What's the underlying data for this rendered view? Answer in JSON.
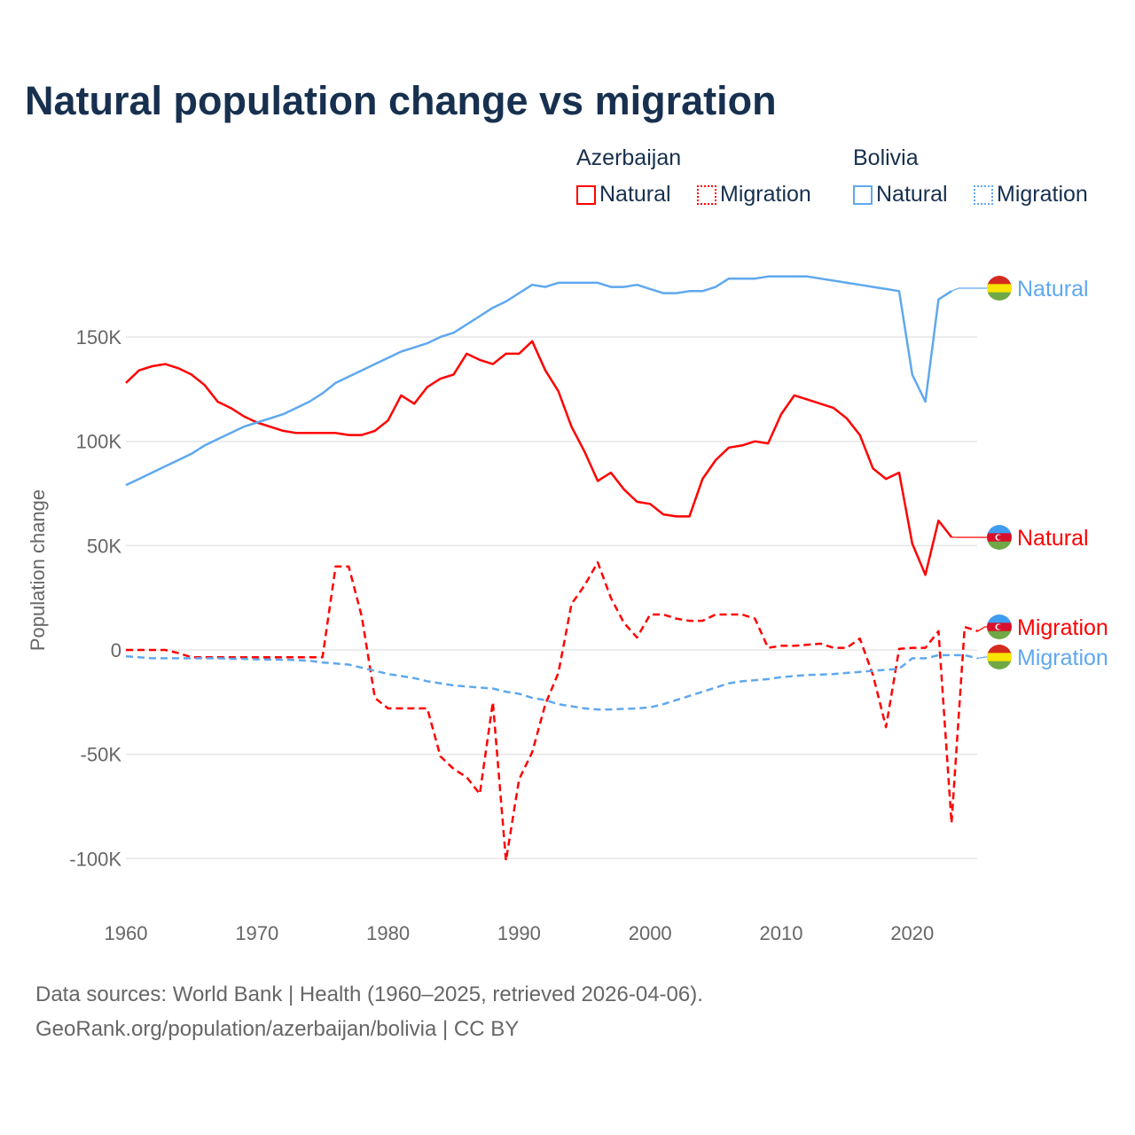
{
  "title": "Natural population change vs migration",
  "legend": {
    "groups": [
      {
        "name": "Azerbaijan",
        "items": [
          {
            "label": "Natural",
            "style": "solid"
          },
          {
            "label": "Migration",
            "style": "dotted"
          }
        ],
        "color": "#ff0000"
      },
      {
        "name": "Bolivia",
        "items": [
          {
            "label": "Natural",
            "style": "solid"
          },
          {
            "label": "Migration",
            "style": "dotted"
          }
        ],
        "color": "#5fa8ee"
      }
    ]
  },
  "footer": {
    "line1": "Data sources: World Bank | Health (1960–2025, retrieved 2026-04-06).",
    "line2": "GeoRank.org/population/azerbaijan/bolivia | CC BY"
  },
  "chart_data": {
    "type": "line",
    "title": "Natural population change vs migration",
    "xlabel": "",
    "ylabel": "Population change",
    "xlim": [
      1960,
      2025
    ],
    "ylim": [
      -110000,
      190000
    ],
    "xticks": [
      1960,
      1970,
      1980,
      1990,
      2000,
      2010,
      2020
    ],
    "xtick_labels": [
      "1960",
      "1970",
      "1980",
      "1990",
      "2000",
      "2010",
      "2020"
    ],
    "yticks": [
      -100000,
      -50000,
      0,
      50000,
      100000,
      150000
    ],
    "ytick_labels": [
      "-100K",
      "-50K",
      "0",
      "50K",
      "100K",
      "150K"
    ],
    "grid": true,
    "legend_position": "top-right",
    "x_start": 1960,
    "units": "thousands",
    "series": [
      {
        "name": "Azerbaijan Natural",
        "end_label": "Natural",
        "color": "#ff0000",
        "dash": false,
        "flag": "azerbaijan",
        "values": [
          128,
          134,
          136,
          137,
          135,
          132,
          127,
          119,
          116,
          112,
          109,
          107,
          105,
          104,
          104,
          104,
          104,
          103,
          103,
          105,
          110,
          122,
          118,
          126,
          130,
          132,
          142,
          139,
          137,
          142,
          142,
          148,
          134,
          124,
          107,
          95,
          81,
          85,
          77,
          71,
          70,
          65,
          64,
          64,
          82,
          91,
          97,
          98,
          100,
          99,
          113,
          122,
          120,
          118,
          116,
          111,
          103,
          87,
          82,
          85,
          51,
          36,
          62,
          54,
          null,
          null
        ]
      },
      {
        "name": "Azerbaijan Migration",
        "end_label": "Migration",
        "color": "#ff0000",
        "dash": true,
        "flag": "azerbaijan",
        "values": [
          0,
          0,
          0,
          0,
          -1.5,
          -3.5,
          -3.5,
          -3.5,
          -3.5,
          -3.5,
          -3.5,
          -3.5,
          -3.5,
          -3.5,
          -3.5,
          -3.5,
          40,
          40,
          16,
          -23,
          -28,
          -28,
          -28,
          -28,
          -51,
          -57,
          -61,
          -69,
          -25,
          -101,
          -62,
          -49,
          -26,
          -11,
          22,
          31,
          42,
          25,
          13,
          6,
          17,
          17,
          15,
          14,
          14,
          17,
          17,
          17,
          15,
          1,
          2,
          2,
          2.5,
          3,
          1,
          1,
          5.5,
          -12,
          -37,
          0.5,
          1,
          1,
          9,
          -83,
          11,
          9
        ]
      },
      {
        "name": "Bolivia Natural",
        "end_label": "Natural",
        "color": "#5fa8ee",
        "dash": false,
        "flag": "bolivia",
        "values": [
          79,
          82,
          85,
          88,
          91,
          94,
          98,
          101,
          104,
          107,
          109,
          111,
          113,
          116,
          119,
          123,
          128,
          131,
          134,
          137,
          140,
          143,
          145,
          147,
          150,
          152,
          156,
          160,
          164,
          167,
          171,
          175,
          174,
          176,
          176,
          176,
          176,
          174,
          174,
          175,
          173,
          171,
          171,
          172,
          172,
          174,
          178,
          178,
          178,
          179,
          179,
          179,
          179,
          178,
          177,
          176,
          175,
          174,
          173,
          172,
          132,
          119,
          168,
          172,
          null,
          null
        ]
      },
      {
        "name": "Bolivia Migration",
        "end_label": "Migration",
        "color": "#5fa8ee",
        "dash": true,
        "flag": "bolivia",
        "values": [
          -3,
          -3.5,
          -4,
          -4,
          -4,
          -4,
          -4,
          -4,
          -4.2,
          -4.3,
          -4.5,
          -4.6,
          -4.7,
          -4.8,
          -5.2,
          -6,
          -6.5,
          -7,
          -8.5,
          -10,
          -11.5,
          -12.5,
          -13.5,
          -15,
          -16,
          -17,
          -17.5,
          -18,
          -18.5,
          -20,
          -21,
          -23,
          -24,
          -26,
          -27,
          -28,
          -28.5,
          -28.5,
          -28.2,
          -28,
          -27.5,
          -26,
          -24,
          -22,
          -20,
          -18,
          -16,
          -15,
          -14.5,
          -14,
          -13,
          -12.5,
          -12,
          -11.8,
          -11.5,
          -11,
          -10.5,
          -10,
          -9.5,
          -9,
          -4,
          -4,
          -2.5,
          -2.5,
          -2.5,
          -4
        ]
      }
    ]
  }
}
